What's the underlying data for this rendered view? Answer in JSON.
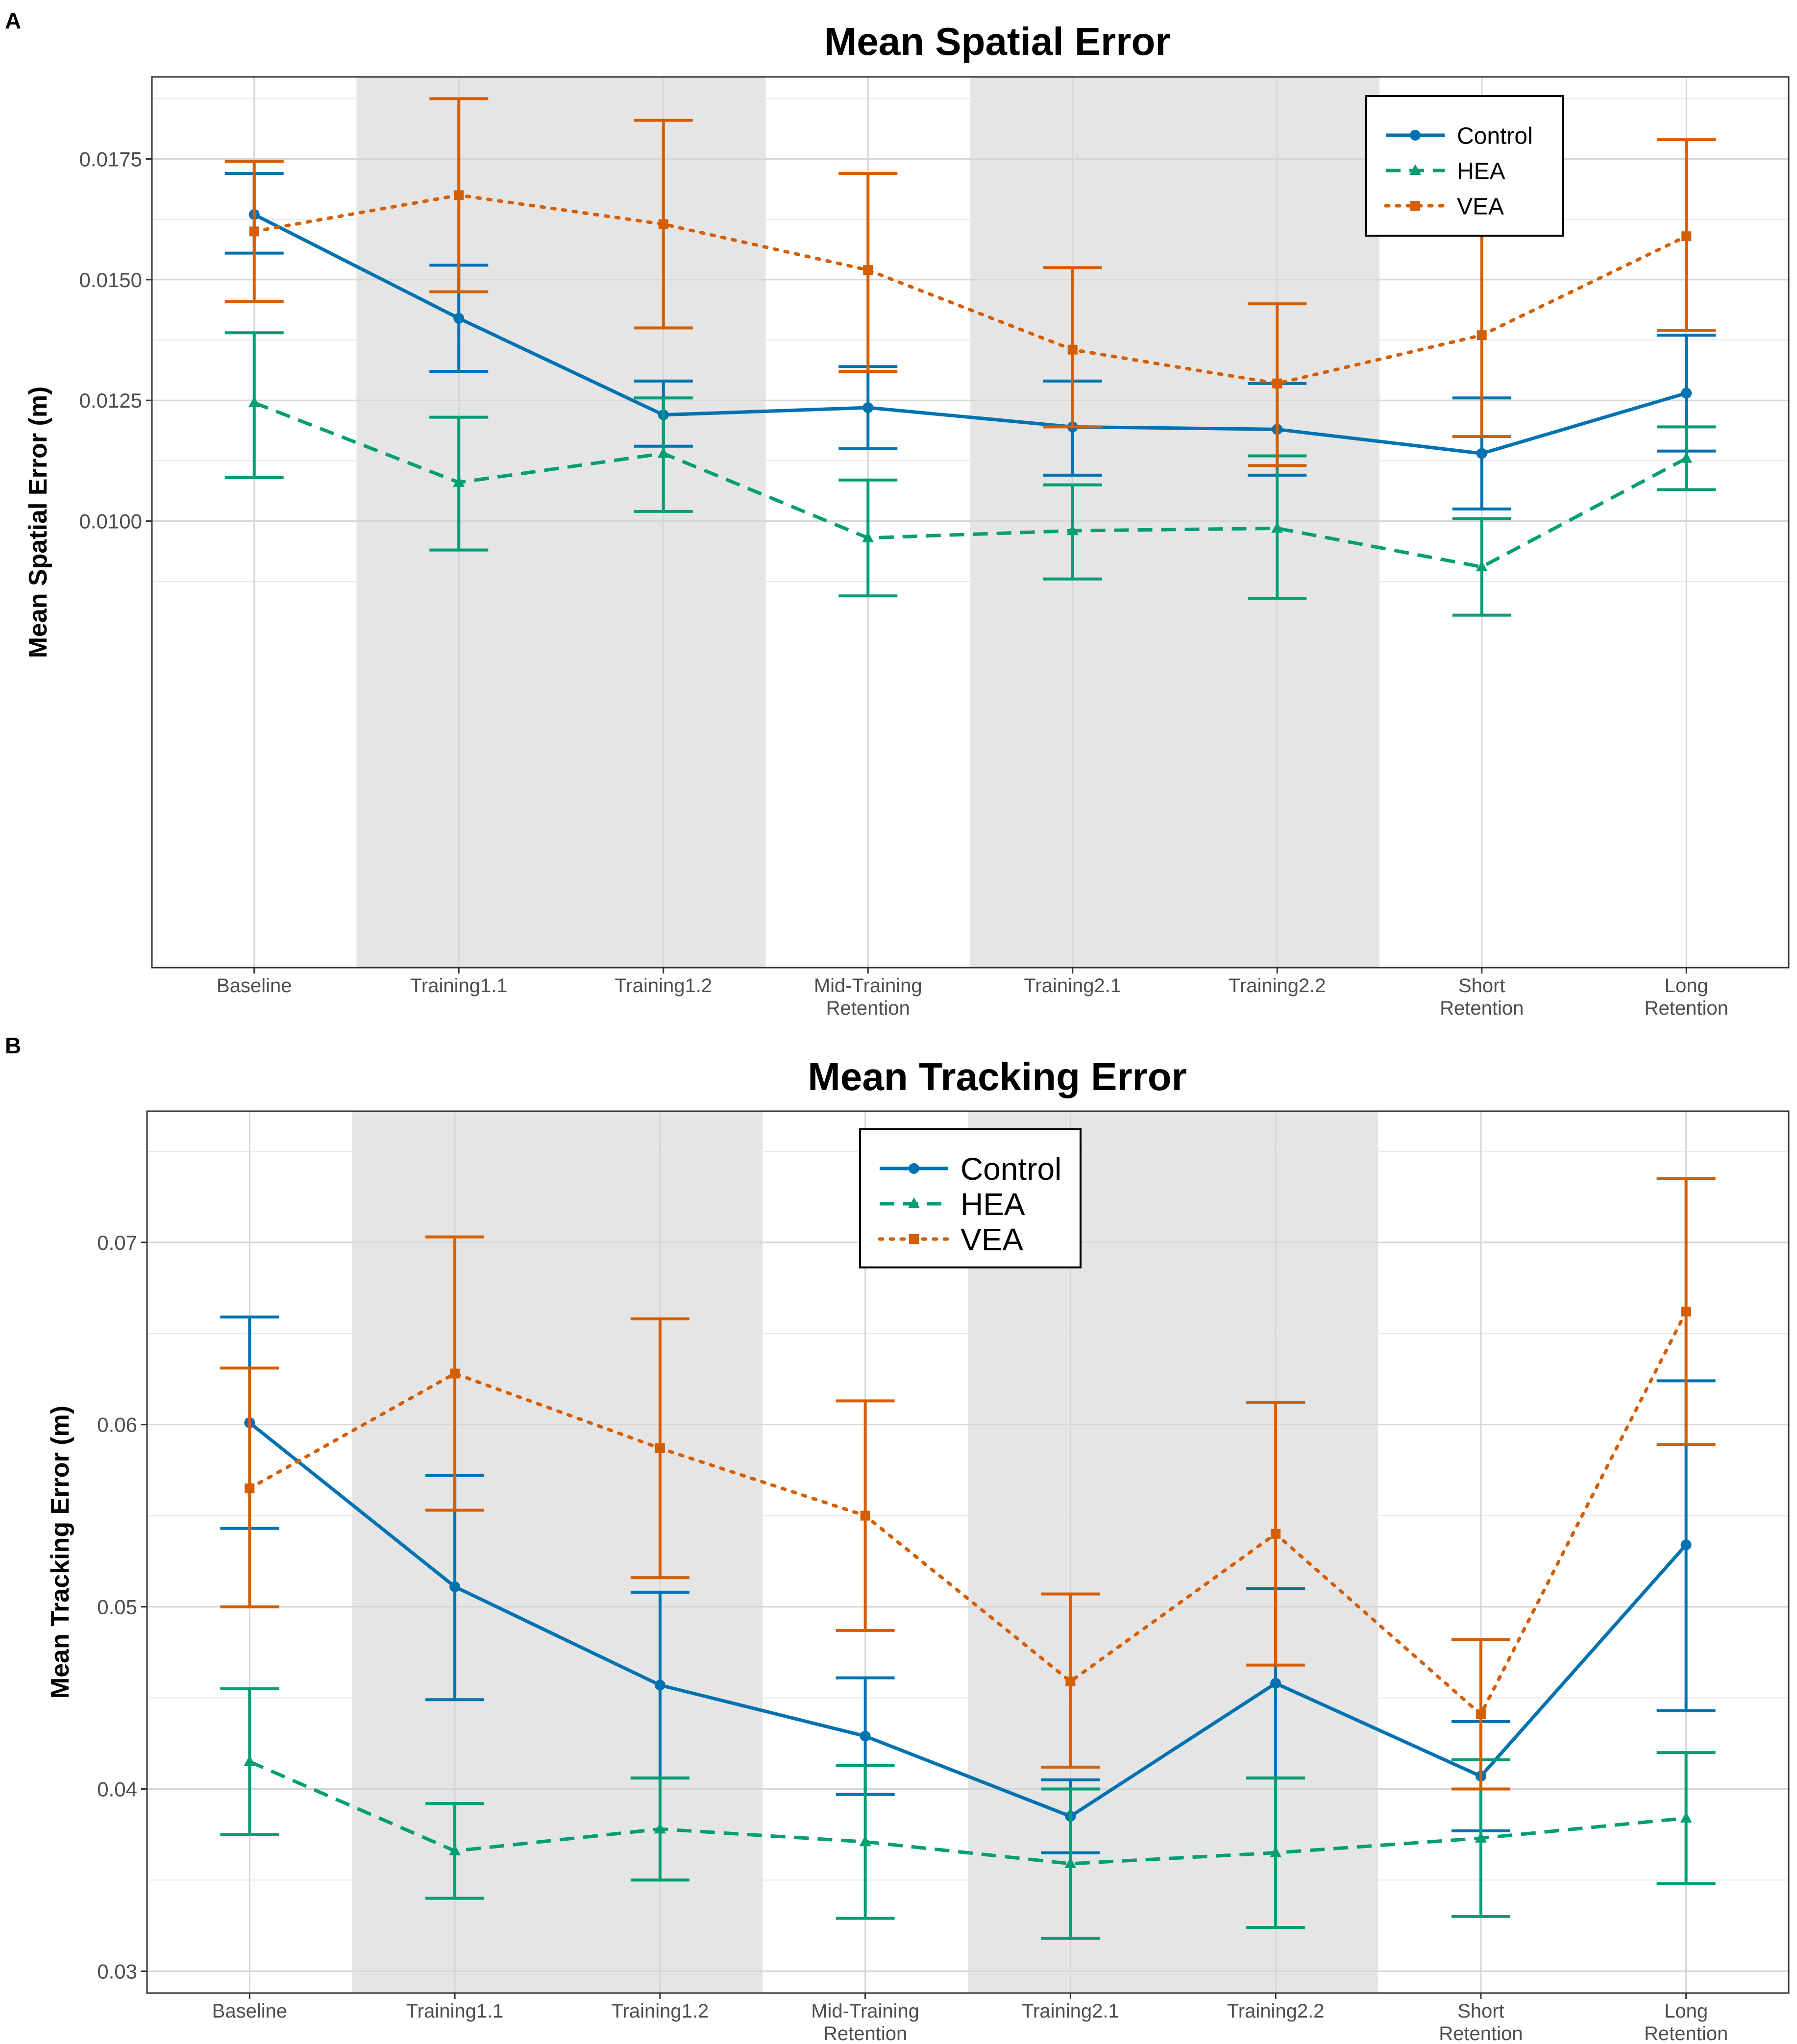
{
  "colors": {
    "Control": "#0072B2",
    "HEA": "#009E73",
    "VEA": "#D55E00",
    "shade": "#e5e5e5",
    "grid": "#ebebeb"
  },
  "chart_data": [
    {
      "panel_label": "A",
      "type": "line",
      "title": "Mean Spatial Error",
      "xlabel": "",
      "ylabel": "Mean Spatial Error (m)",
      "ylim": [
        0.00075,
        0.0192
      ],
      "yticks": [
        0.01,
        0.0125,
        0.015,
        0.0175
      ],
      "ytick_labels": [
        "0.0100",
        "0.0125",
        "0.0150",
        "0.0175"
      ],
      "categories": [
        "Baseline",
        "Training1.1",
        "Training1.2",
        "Mid-Training\nRetention",
        "Training2.1",
        "Training2.2",
        "Short\nRetention",
        "Long\nRetention"
      ],
      "shaded_category_ranges": [
        [
          1,
          2
        ],
        [
          4,
          5
        ]
      ],
      "grid": true,
      "legend_position": "top-right",
      "series": [
        {
          "name": "Control",
          "marker": "circle",
          "line": "solid",
          "values": [
            0.01635,
            0.0142,
            0.0122,
            0.01235,
            0.01195,
            0.0119,
            0.0114,
            0.01265
          ],
          "lower": [
            0.01555,
            0.0131,
            0.01155,
            0.0115,
            0.01095,
            0.01095,
            0.01025,
            0.01145
          ],
          "upper": [
            0.0172,
            0.0153,
            0.0129,
            0.0132,
            0.0129,
            0.01285,
            0.01255,
            0.01385
          ]
        },
        {
          "name": "HEA",
          "marker": "triangle",
          "line": "dashed",
          "values": [
            0.01245,
            0.0108,
            0.0114,
            0.00965,
            0.0098,
            0.00985,
            0.00905,
            0.0113
          ],
          "lower": [
            0.0109,
            0.0094,
            0.0102,
            0.00845,
            0.0088,
            0.0084,
            0.00805,
            0.01065
          ],
          "upper": [
            0.0139,
            0.01215,
            0.01255,
            0.01085,
            0.01075,
            0.01135,
            0.01005,
            0.01195
          ]
        },
        {
          "name": "VEA",
          "marker": "square",
          "line": "dotted",
          "values": [
            0.016,
            0.01675,
            0.01615,
            0.0152,
            0.01355,
            0.01285,
            0.01385,
            0.0159
          ],
          "lower": [
            0.01455,
            0.01475,
            0.014,
            0.0131,
            0.01195,
            0.01115,
            0.01175,
            0.01395
          ],
          "upper": [
            0.01745,
            0.01875,
            0.0183,
            0.0172,
            0.01525,
            0.0145,
            0.01595,
            0.0179
          ]
        }
      ]
    },
    {
      "panel_label": "B",
      "type": "line",
      "title": "Mean Tracking Error",
      "xlabel": "",
      "ylabel": "Mean Tracking Error (m)",
      "ylim": [
        0.0288,
        0.0772
      ],
      "yticks": [
        0.03,
        0.04,
        0.05,
        0.06,
        0.07
      ],
      "ytick_labels": [
        "0.03",
        "0.04",
        "0.05",
        "0.06",
        "0.07"
      ],
      "categories": [
        "Baseline",
        "Training1.1",
        "Training1.2",
        "Mid-Training\nRetention",
        "Training2.1",
        "Training2.2",
        "Short\nRetention",
        "Long\nRetention"
      ],
      "shaded_category_ranges": [
        [
          1,
          2
        ],
        [
          4,
          5
        ]
      ],
      "grid": true,
      "legend_position": "top-center",
      "series": [
        {
          "name": "Control",
          "marker": "circle",
          "line": "solid",
          "values": [
            0.0601,
            0.0511,
            0.0457,
            0.0429,
            0.0385,
            0.0458,
            0.0407,
            0.0534
          ],
          "lower": [
            0.0543,
            0.0449,
            0.0406,
            0.0397,
            0.0365,
            0.0406,
            0.0377,
            0.0443
          ],
          "upper": [
            0.0659,
            0.0572,
            0.0508,
            0.0461,
            0.0405,
            0.051,
            0.0437,
            0.0624
          ]
        },
        {
          "name": "HEA",
          "marker": "triangle",
          "line": "dashed",
          "values": [
            0.0415,
            0.0366,
            0.0378,
            0.0371,
            0.0359,
            0.0365,
            0.0373,
            0.0384
          ],
          "lower": [
            0.0375,
            0.034,
            0.035,
            0.0329,
            0.0318,
            0.0324,
            0.033,
            0.0348
          ],
          "upper": [
            0.0455,
            0.0392,
            0.0406,
            0.0413,
            0.04,
            0.0406,
            0.0416,
            0.042
          ]
        },
        {
          "name": "VEA",
          "marker": "square",
          "line": "dotted",
          "values": [
            0.0565,
            0.0628,
            0.0587,
            0.055,
            0.0459,
            0.054,
            0.0441,
            0.0662
          ],
          "lower": [
            0.05,
            0.0553,
            0.0516,
            0.0487,
            0.0412,
            0.0468,
            0.04,
            0.0589
          ],
          "upper": [
            0.0631,
            0.0703,
            0.0658,
            0.0613,
            0.0507,
            0.0612,
            0.0482,
            0.0735
          ]
        }
      ]
    }
  ]
}
